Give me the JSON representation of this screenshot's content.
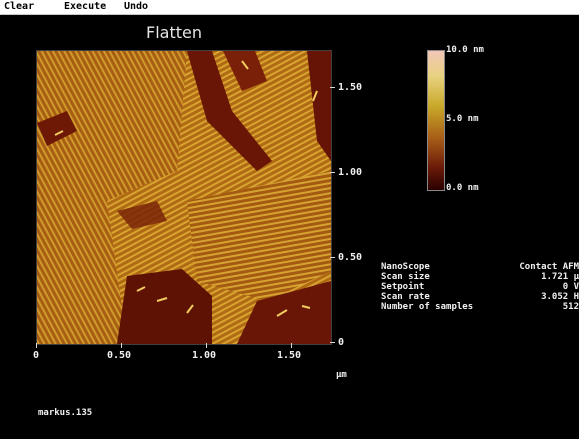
{
  "menu": {
    "items": [
      "Clear",
      "Execute",
      "Undo"
    ]
  },
  "image": {
    "title": "Flatten",
    "y_axis_ticks": [
      "1.50",
      "1.00",
      "0.50",
      "0"
    ],
    "x_axis_ticks": [
      "0",
      "0.50",
      "1.00",
      "1.50"
    ],
    "axis_unit": "µm"
  },
  "colorbar": {
    "labels": [
      "10.0 nm",
      "5.0 nm",
      "0.0 nm"
    ],
    "colors": [
      "#f2c6b8",
      "#e9d280",
      "#c8a828",
      "#a86018",
      "#6a1a08",
      "#2a0000"
    ]
  },
  "info": {
    "rows": [
      {
        "key": "NanoScope",
        "value": "Contact AFM"
      },
      {
        "key": "Scan size",
        "value": "1.721 µ"
      },
      {
        "key": "Setpoint",
        "value": "0 V"
      },
      {
        "key": "Scan rate",
        "value": "3.052 H"
      },
      {
        "key": "Number of samples",
        "value": "512"
      }
    ]
  },
  "filename": "markus.135"
}
